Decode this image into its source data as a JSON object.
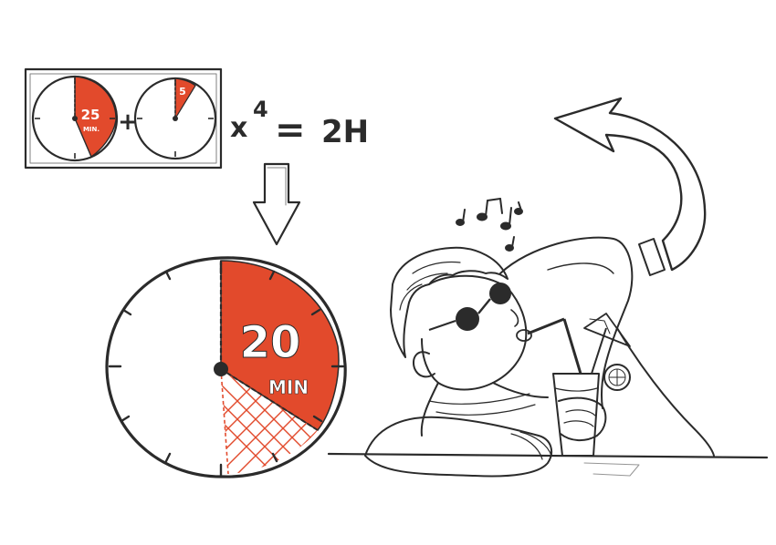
{
  "colors": {
    "accent": "#e24a2c",
    "ink": "#2b2b2b",
    "paper": "#ffffff"
  },
  "small_timers": {
    "work": {
      "value": "25",
      "unit": "MIN."
    },
    "break": {
      "value": "5"
    }
  },
  "operators": {
    "plus": "+",
    "times": "x",
    "multiplier": "4",
    "equals": "=",
    "total": "2H"
  },
  "big_timer": {
    "value": "20",
    "unit": "MIN"
  },
  "notes_icon": "music-notes-icon",
  "arrows": [
    "down-arrow-icon",
    "curved-return-arrow-icon"
  ]
}
